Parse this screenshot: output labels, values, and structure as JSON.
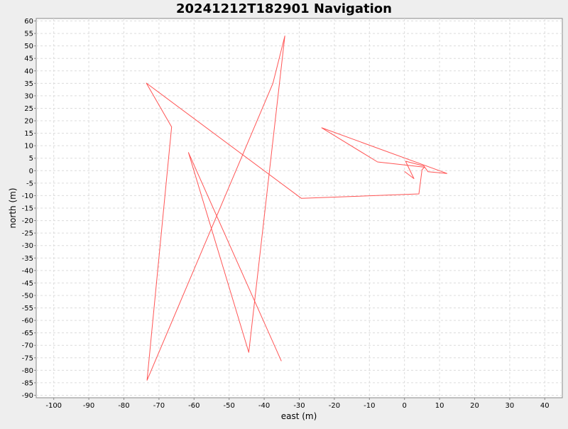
{
  "chart_data": {
    "type": "line",
    "title": "20241212T182901 Navigation",
    "xlabel": "east (m)",
    "ylabel": "north (m)",
    "xlim": [
      -105,
      45
    ],
    "ylim": [
      -91,
      61
    ],
    "x_ticks": [
      -100,
      -90,
      -80,
      -70,
      -60,
      -50,
      -40,
      -30,
      -20,
      -10,
      0,
      10,
      20,
      30,
      40
    ],
    "y_ticks": [
      60,
      55,
      50,
      45,
      40,
      35,
      30,
      25,
      20,
      15,
      10,
      5,
      0,
      -5,
      -10,
      -15,
      -20,
      -25,
      -30,
      -35,
      -40,
      -45,
      -50,
      -55,
      -60,
      -65,
      -70,
      -75,
      -80,
      -85,
      -90
    ],
    "grid": true,
    "series": [
      {
        "color": "#ff5555",
        "points": [
          [
            0,
            -0.3
          ],
          [
            2.7,
            -3.2
          ],
          [
            0.3,
            3.8
          ],
          [
            5.5,
            1.9
          ],
          [
            6.7,
            -0.4
          ],
          [
            12.1,
            -1.1
          ],
          [
            -23.6,
            17.2
          ],
          [
            -7.7,
            3.5
          ],
          [
            5.7,
            1.4
          ],
          [
            5.0,
            0.4
          ],
          [
            4.1,
            -9.3
          ],
          [
            -29.4,
            -11.1
          ],
          [
            -73.6,
            35.1
          ],
          [
            -66.4,
            17.5
          ],
          [
            -73.4,
            -84.0
          ],
          [
            -37.5,
            35.0
          ],
          [
            -34.1,
            54.0
          ],
          [
            -44.4,
            -72.8
          ],
          [
            -61.6,
            7.3
          ],
          [
            -35.1,
            -76.3
          ]
        ]
      }
    ]
  }
}
